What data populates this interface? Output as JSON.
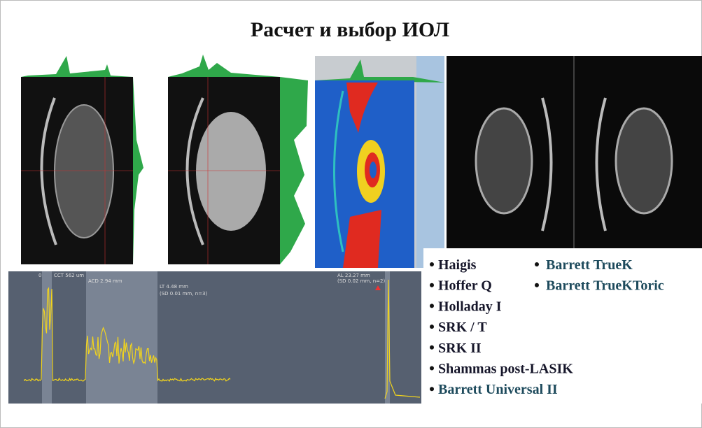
{
  "title": "Расчет и выбор ИОЛ",
  "biometry": {
    "zero": "0",
    "cct": "CCT 562 um",
    "acd": "ACD 2.94 mm",
    "lt": "LT 4.48 mm",
    "lt_sd": "(SD 0.01 mm, n=3)",
    "al": "AL 23.27 mm",
    "al_sd": "(SD 0.02 mm, n=2)"
  },
  "formulas": {
    "left": [
      "Haigis",
      "Hoffer Q",
      "Holladay I",
      "SRK / T",
      "SRK II",
      "Shammas post-LASIK",
      "Barrett Universal II"
    ],
    "right": [
      "Barrett TrueK",
      "Barrett TrueKToric"
    ]
  }
}
